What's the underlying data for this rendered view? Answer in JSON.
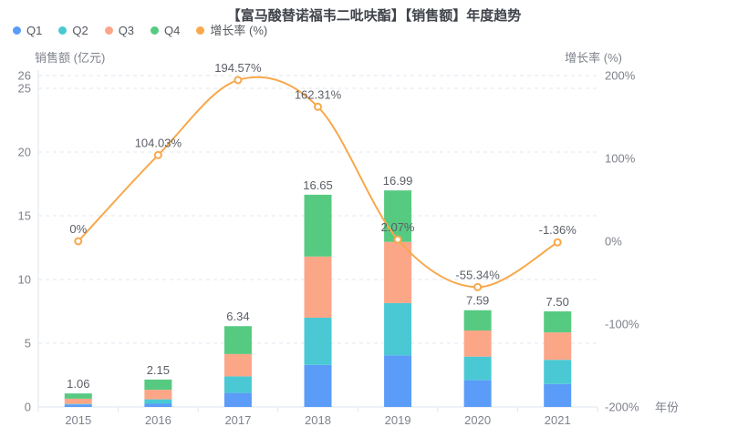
{
  "chart_data": {
    "type": "combo",
    "subtype": "stacked-bar-with-line",
    "title": "【富马酸替诺福韦二吡呋酯】【销售额】年度趋势",
    "categories": [
      "2015",
      "2016",
      "2017",
      "2018",
      "2019",
      "2020",
      "2021"
    ],
    "series": [
      {
        "name": "Q1",
        "type": "bar",
        "color": "#5B9CF8",
        "values": [
          0.2,
          0.25,
          1.1,
          3.3,
          4.05,
          2.1,
          1.8
        ]
      },
      {
        "name": "Q2",
        "type": "bar",
        "color": "#4AC9D4",
        "values": [
          0.04,
          0.35,
          1.3,
          3.7,
          4.1,
          1.85,
          1.9
        ]
      },
      {
        "name": "Q3",
        "type": "bar",
        "color": "#FCA688",
        "values": [
          0.41,
          0.75,
          1.75,
          4.8,
          4.8,
          2.05,
          2.15
        ]
      },
      {
        "name": "Q4",
        "type": "bar",
        "color": "#57CA82",
        "values": [
          0.41,
          0.8,
          2.19,
          4.85,
          4.04,
          1.59,
          1.65
        ]
      },
      {
        "name": "增长率 (%)",
        "type": "line",
        "color": "#F8A84B",
        "values": [
          0,
          104.03,
          194.57,
          162.31,
          2.07,
          -55.34,
          -1.36
        ],
        "labels": [
          "0%",
          "104.03%",
          "194.57%",
          "162.31%",
          "2.07%",
          "-55.34%",
          "-1.36%"
        ]
      }
    ],
    "bar_totals": [
      "1.06",
      "2.15",
      "6.34",
      "16.65",
      "16.99",
      "7.59",
      "7.50"
    ],
    "ylabel_left": "销售额 (亿元)",
    "ylabel_right": "增长率 (%)",
    "xlabel": "年份",
    "ylim_left": [
      0,
      26
    ],
    "ylim_right": [
      -200,
      200
    ],
    "left_ticks": [
      0,
      5,
      10,
      15,
      20,
      25,
      26
    ],
    "right_ticks": [
      {
        "v": 200,
        "label": "200%"
      },
      {
        "v": 100,
        "label": "100%"
      },
      {
        "v": 0,
        "label": "0%"
      },
      {
        "v": -100,
        "label": "-100%"
      },
      {
        "v": -200,
        "label": "-200%"
      }
    ],
    "grid": true,
    "legend_position": "top-left"
  },
  "colors": {
    "grid": "#E1E7F2",
    "axis_line": "#DDE4EE",
    "tick_text": "#7E828B",
    "data_label_text": "#5B5F66",
    "title_text": "#3F434A",
    "legend_text": "#54585F",
    "background": "#FFFFFF"
  }
}
